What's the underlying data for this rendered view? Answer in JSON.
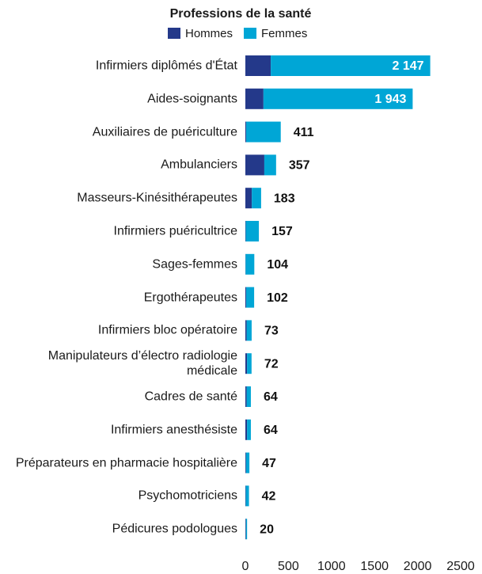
{
  "chart_data": {
    "type": "stacked_barh",
    "title": "Professions de la santé",
    "categories": [
      "Infirmiers diplômés d'État",
      "Aides-soignants",
      "Auxiliaires de puériculture",
      "Ambulanciers",
      "Masseurs-Kinésithérapeutes",
      "Infirmiers puéricultrice",
      "Sages-femmes",
      "Ergothérapeutes",
      "Infirmiers bloc opératoire",
      "Manipulateurs d’électro radiologie médicale",
      "Cadres de santé",
      "Infirmiers anesthésiste",
      "Préparateurs en pharmacie hospitalière",
      "Psychomotriciens",
      "Pédicures podologues"
    ],
    "series": [
      {
        "name": "Hommes",
        "color": "#24398a",
        "values": [
          295,
          210,
          10,
          220,
          75,
          5,
          3,
          10,
          15,
          20,
          15,
          20,
          8,
          5,
          7
        ]
      },
      {
        "name": "Femmes",
        "color": "#00a6d6",
        "values": [
          1852,
          1733,
          401,
          137,
          108,
          152,
          101,
          92,
          58,
          52,
          49,
          44,
          39,
          37,
          13
        ]
      }
    ],
    "totals": [
      {
        "value": 2147,
        "label": "2 147"
      },
      {
        "value": 1943,
        "label": "1 943"
      },
      411,
      357,
      183,
      157,
      104,
      102,
      73,
      72,
      64,
      64,
      47,
      42,
      20
    ],
    "xlim": [
      0,
      2500
    ],
    "xticks": [
      0,
      500,
      1000,
      1500,
      2000,
      2500
    ]
  }
}
